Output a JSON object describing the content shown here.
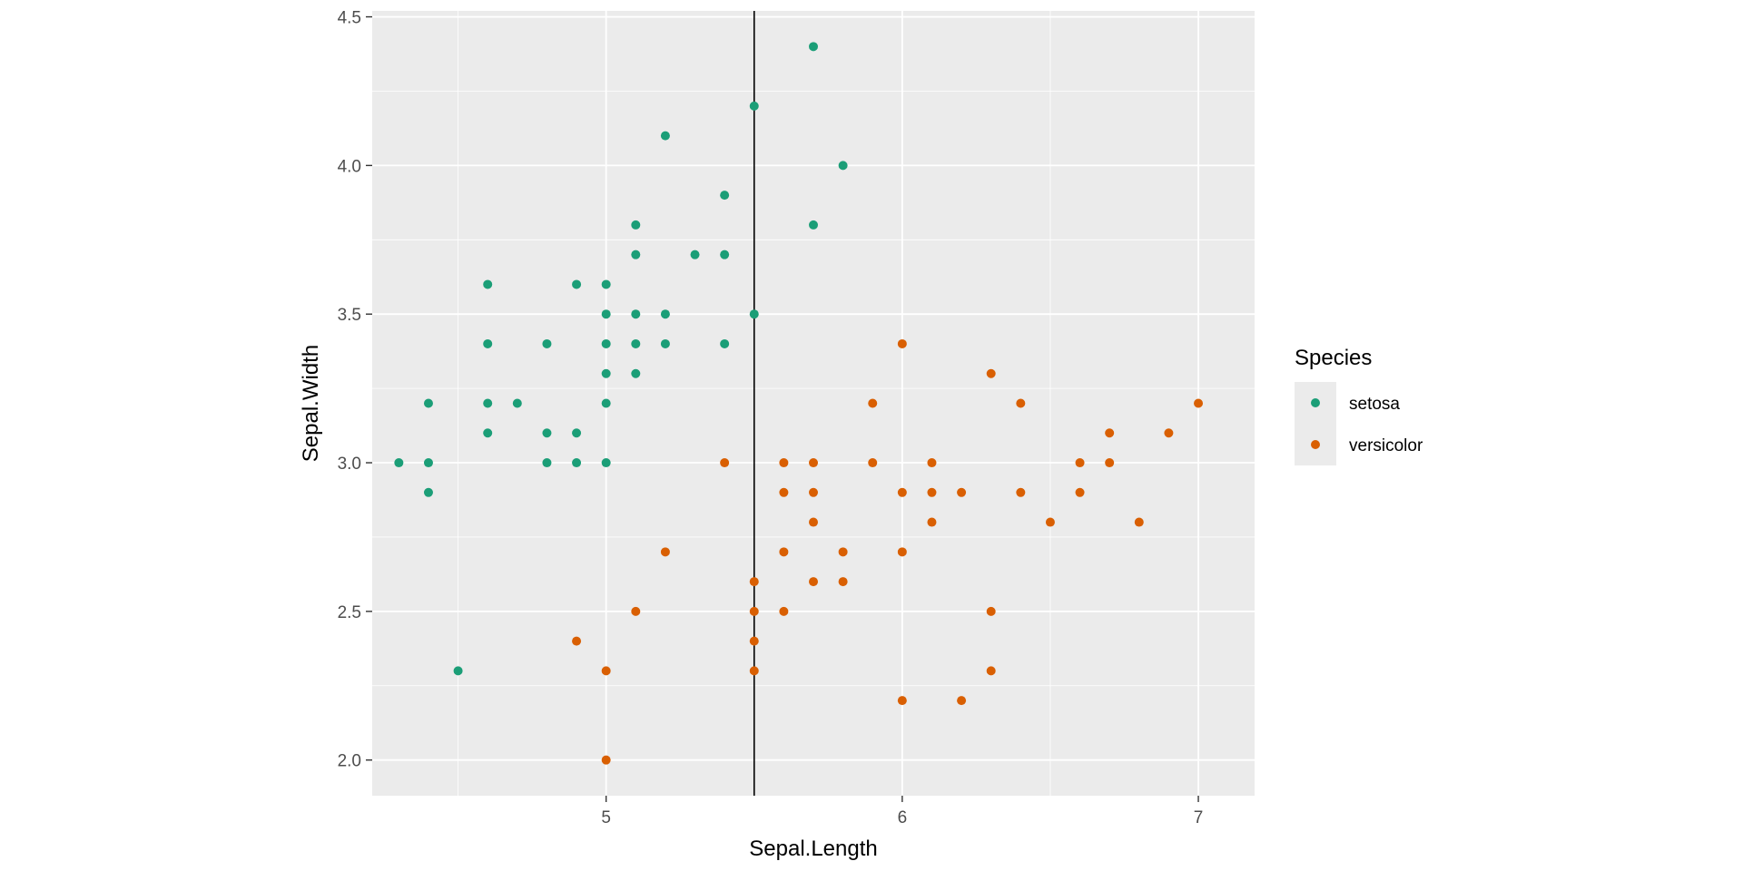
{
  "chart_data": {
    "type": "scatter",
    "xlabel": "Sepal.Length",
    "ylabel": "Sepal.Width",
    "xlim": [
      4.21,
      7.19
    ],
    "ylim": [
      1.88,
      4.52
    ],
    "x_ticks": [
      5,
      6,
      7
    ],
    "y_ticks": [
      2.0,
      2.5,
      3.0,
      3.5,
      4.0,
      4.5
    ],
    "x_tick_labels": [
      "5",
      "6",
      "7"
    ],
    "y_tick_labels": [
      "2.0",
      "2.5",
      "3.0",
      "3.5",
      "4.0",
      "4.5"
    ],
    "grid": true,
    "panel_background": "#ebebeb",
    "vline": {
      "x": 5.5,
      "color": "#000000"
    },
    "legend": {
      "title": "Species",
      "placement": "right"
    },
    "series": [
      {
        "name": "setosa",
        "color": "#1b9e77",
        "points": [
          [
            4.3,
            3.0
          ],
          [
            4.4,
            3.2
          ],
          [
            4.4,
            3.0
          ],
          [
            4.4,
            2.9
          ],
          [
            4.5,
            2.3
          ],
          [
            4.6,
            3.6
          ],
          [
            4.6,
            3.4
          ],
          [
            4.6,
            3.2
          ],
          [
            4.6,
            3.1
          ],
          [
            4.7,
            3.2
          ],
          [
            4.8,
            3.4
          ],
          [
            4.8,
            3.1
          ],
          [
            4.8,
            3.0
          ],
          [
            4.9,
            3.6
          ],
          [
            4.9,
            3.1
          ],
          [
            4.9,
            3.0
          ],
          [
            5.0,
            3.6
          ],
          [
            5.0,
            3.5
          ],
          [
            5.0,
            3.4
          ],
          [
            5.0,
            3.3
          ],
          [
            5.0,
            3.2
          ],
          [
            5.0,
            3.0
          ],
          [
            5.1,
            3.8
          ],
          [
            5.1,
            3.7
          ],
          [
            5.1,
            3.5
          ],
          [
            5.1,
            3.4
          ],
          [
            5.1,
            3.3
          ],
          [
            5.2,
            4.1
          ],
          [
            5.2,
            3.5
          ],
          [
            5.2,
            3.4
          ],
          [
            5.3,
            3.7
          ],
          [
            5.4,
            3.9
          ],
          [
            5.4,
            3.7
          ],
          [
            5.4,
            3.4
          ],
          [
            5.5,
            4.2
          ],
          [
            5.5,
            3.5
          ],
          [
            5.7,
            4.4
          ],
          [
            5.7,
            3.8
          ],
          [
            5.8,
            4.0
          ]
        ]
      },
      {
        "name": "versicolor",
        "color": "#d95f02",
        "points": [
          [
            4.9,
            2.4
          ],
          [
            5.0,
            2.3
          ],
          [
            5.0,
            2.0
          ],
          [
            5.1,
            2.5
          ],
          [
            5.2,
            2.7
          ],
          [
            5.4,
            3.0
          ],
          [
            5.5,
            2.6
          ],
          [
            5.5,
            2.5
          ],
          [
            5.5,
            2.4
          ],
          [
            5.5,
            2.3
          ],
          [
            5.6,
            3.0
          ],
          [
            5.6,
            2.9
          ],
          [
            5.6,
            2.7
          ],
          [
            5.6,
            2.5
          ],
          [
            5.7,
            3.0
          ],
          [
            5.7,
            2.9
          ],
          [
            5.7,
            2.8
          ],
          [
            5.7,
            2.6
          ],
          [
            5.8,
            2.7
          ],
          [
            5.8,
            2.6
          ],
          [
            5.9,
            3.2
          ],
          [
            5.9,
            3.0
          ],
          [
            6.0,
            3.4
          ],
          [
            6.0,
            2.9
          ],
          [
            6.0,
            2.7
          ],
          [
            6.0,
            2.2
          ],
          [
            6.1,
            3.0
          ],
          [
            6.1,
            2.9
          ],
          [
            6.1,
            2.8
          ],
          [
            6.2,
            2.9
          ],
          [
            6.2,
            2.2
          ],
          [
            6.3,
            3.3
          ],
          [
            6.3,
            2.5
          ],
          [
            6.3,
            2.3
          ],
          [
            6.4,
            3.2
          ],
          [
            6.4,
            2.9
          ],
          [
            6.5,
            2.8
          ],
          [
            6.6,
            3.0
          ],
          [
            6.6,
            2.9
          ],
          [
            6.7,
            3.1
          ],
          [
            6.7,
            3.0
          ],
          [
            6.8,
            2.8
          ],
          [
            6.9,
            3.1
          ],
          [
            7.0,
            3.2
          ]
        ]
      }
    ]
  }
}
